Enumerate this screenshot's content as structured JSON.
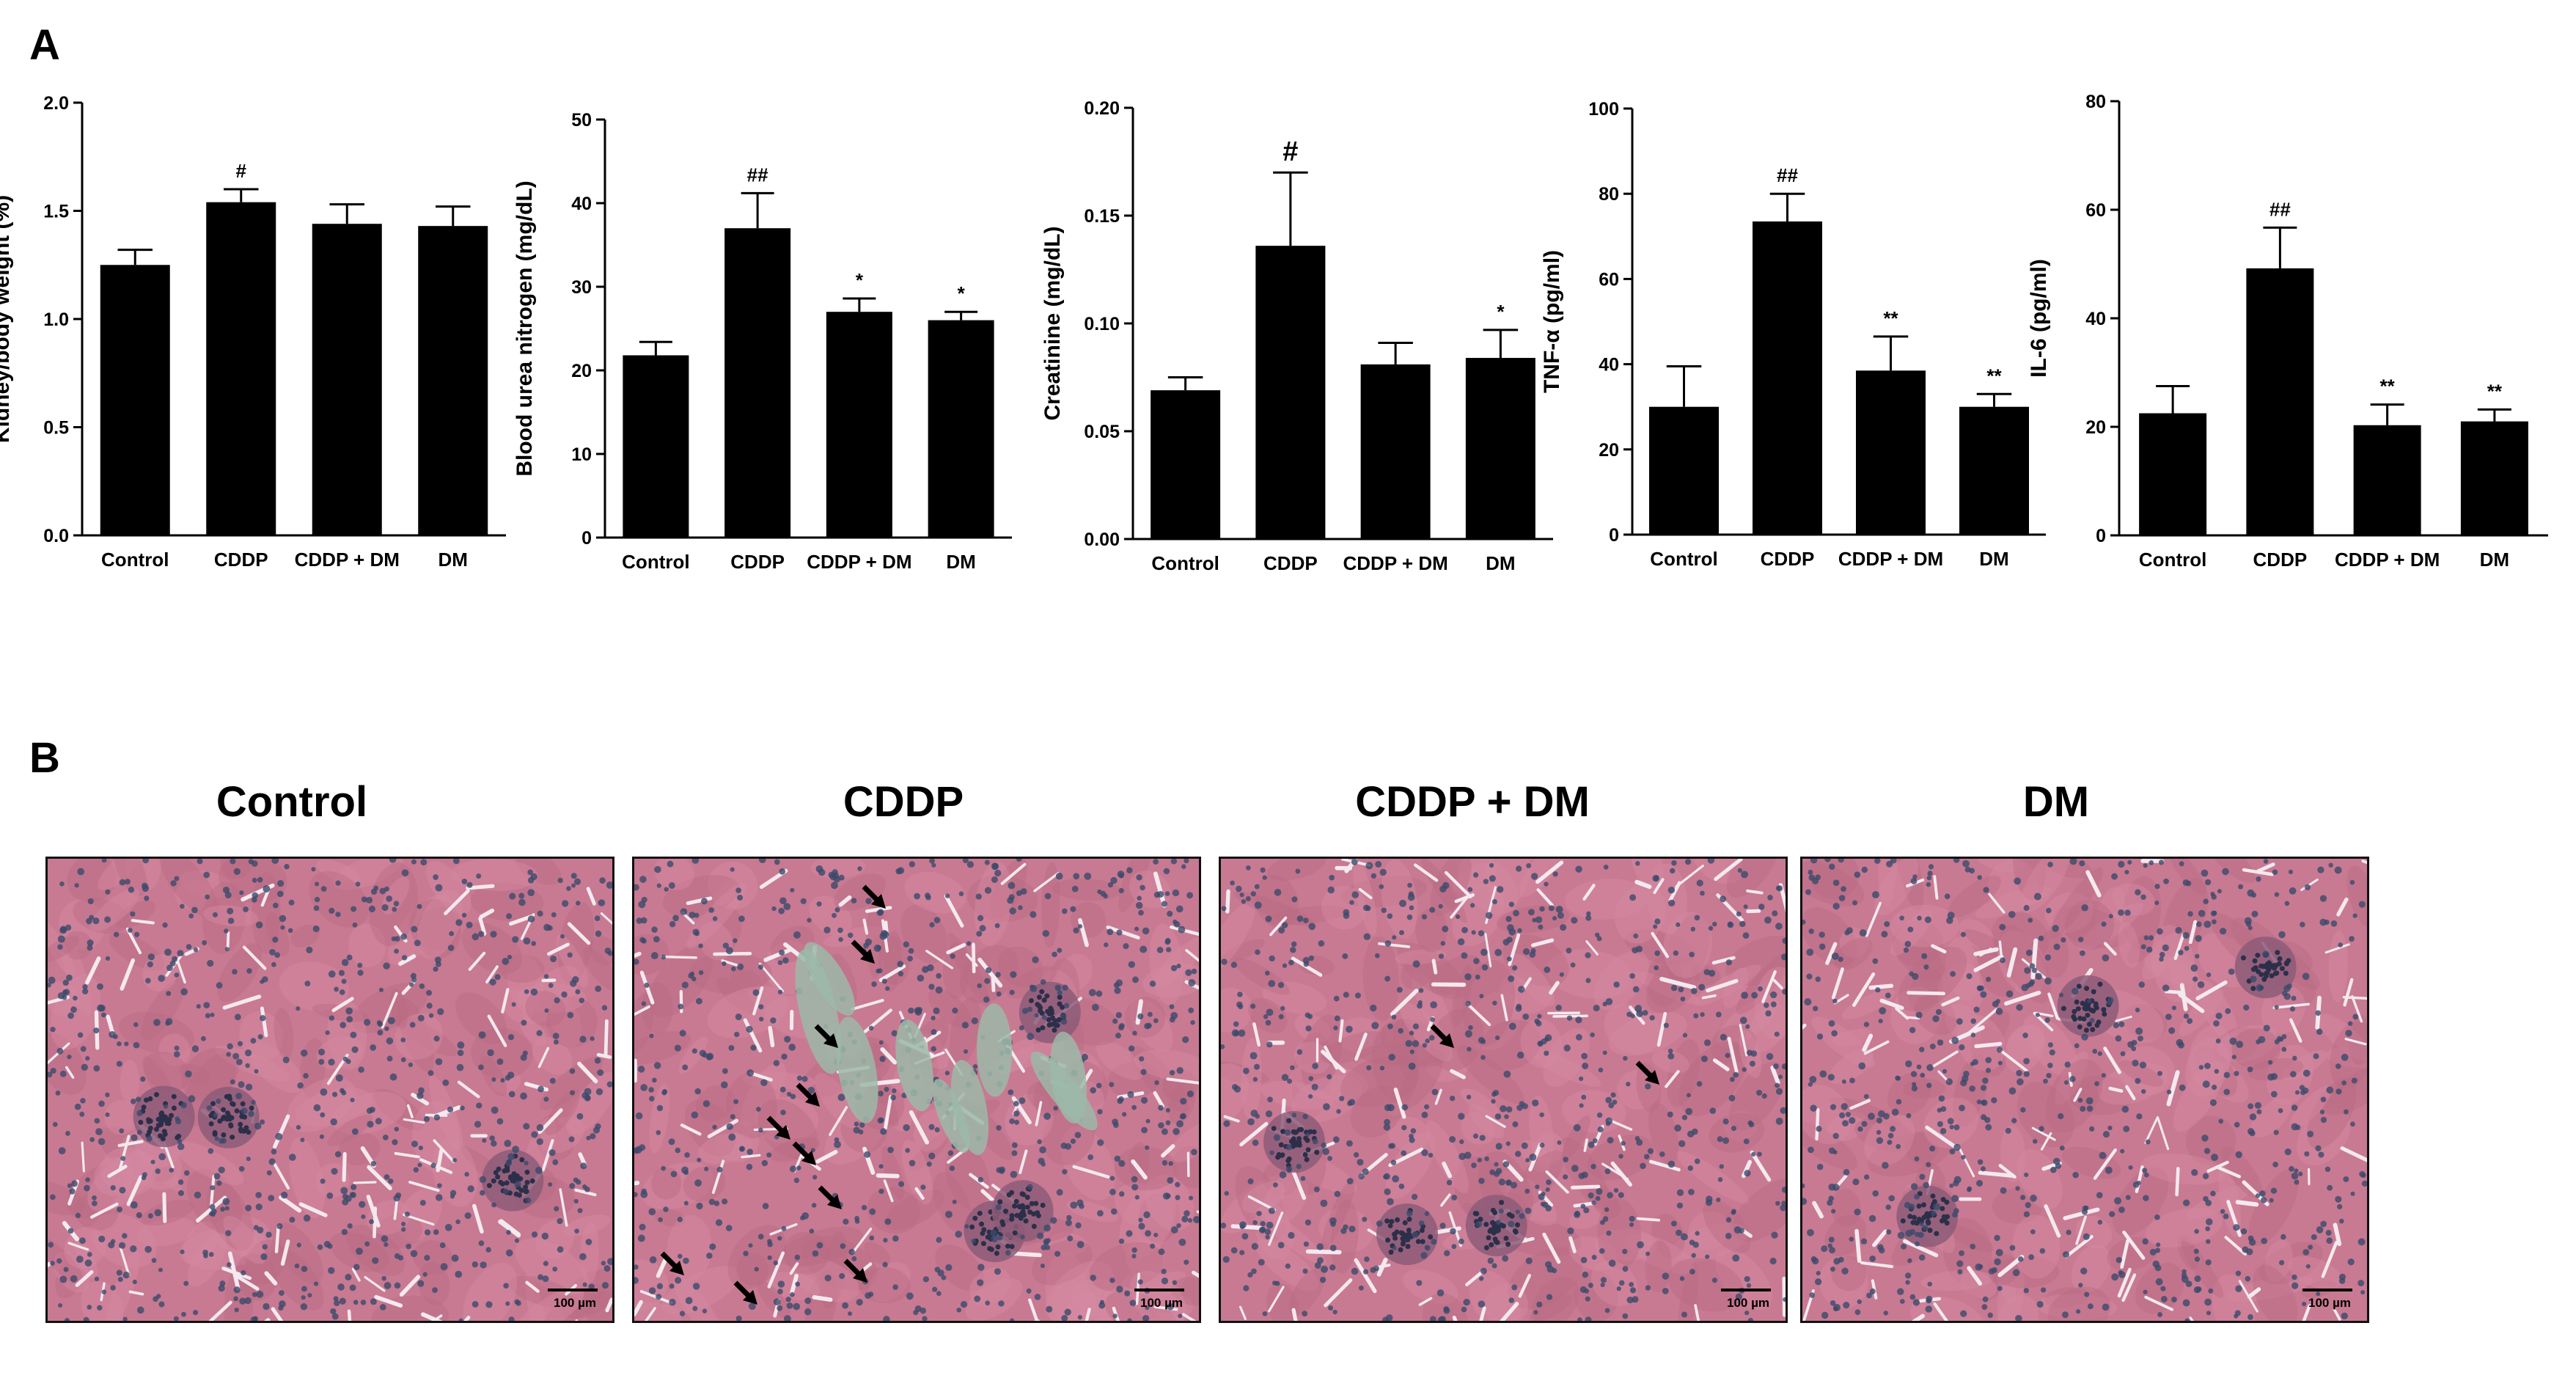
{
  "panels": {
    "a_label": "A",
    "b_label": "B"
  },
  "chart_data": [
    {
      "type": "bar",
      "categories": [
        "Control",
        "CDDP",
        "CDDP + DM",
        "DM"
      ],
      "values": [
        1.25,
        1.54,
        1.44,
        1.43
      ],
      "errors": [
        0.07,
        0.06,
        0.09,
        0.09
      ],
      "annotations": [
        "",
        "#",
        "",
        ""
      ],
      "ylabel": "Kidney/body weight (%)",
      "ylim": [
        0,
        2.0
      ],
      "yticks": [
        "0.0",
        "0.5",
        "1.0",
        "1.5",
        "2.0"
      ],
      "ytick_values": [
        0,
        0.5,
        1.0,
        1.5,
        2.0
      ]
    },
    {
      "type": "bar",
      "categories": [
        "Control",
        "CDDP",
        "CDDP + DM",
        "DM"
      ],
      "values": [
        21.8,
        37.0,
        27.0,
        26.0
      ],
      "errors": [
        1.6,
        4.2,
        1.6,
        1.0
      ],
      "annotations": [
        "",
        "##",
        "*",
        "*"
      ],
      "ylabel": "Blood urea nitrogen (mg/dL)",
      "ylim": [
        0,
        50
      ],
      "yticks": [
        "0",
        "10",
        "20",
        "30",
        "40",
        "50"
      ],
      "ytick_values": [
        0,
        10,
        20,
        30,
        40,
        50
      ]
    },
    {
      "type": "bar",
      "categories": [
        "Control",
        "CDDP",
        "CDDP + DM",
        "DM"
      ],
      "values": [
        0.069,
        0.136,
        0.081,
        0.084
      ],
      "errors": [
        0.006,
        0.034,
        0.01,
        0.013
      ],
      "annotations": [
        "",
        "#",
        "",
        "*"
      ],
      "ylabel": "Creatinine (mg/dL)",
      "ylim": [
        0,
        0.2
      ],
      "yticks": [
        "0.00",
        "0.05",
        "0.10",
        "0.15",
        "0.20"
      ],
      "ytick_values": [
        0,
        0.05,
        0.1,
        0.15,
        0.2
      ]
    },
    {
      "type": "bar",
      "categories": [
        "Control",
        "CDDP",
        "CDDP + DM",
        "DM"
      ],
      "values": [
        30,
        73.5,
        38.5,
        30
      ],
      "errors": [
        9.5,
        6.5,
        8,
        3
      ],
      "annotations": [
        "",
        "##",
        "**",
        "**"
      ],
      "ylabel": "TNF-α (pg/ml)",
      "ylim": [
        0,
        100
      ],
      "yticks": [
        "0",
        "20",
        "40",
        "60",
        "80",
        "100"
      ],
      "ytick_values": [
        0,
        20,
        40,
        60,
        80,
        100
      ]
    },
    {
      "type": "bar",
      "categories": [
        "Control",
        "CDDP",
        "CDDP + DM",
        "DM"
      ],
      "values": [
        22.5,
        49.2,
        20.3,
        21.0
      ],
      "errors": [
        5,
        7.5,
        3.8,
        2.2
      ],
      "annotations": [
        "",
        "##",
        "**",
        "**"
      ],
      "ylabel": "IL-6 (pg/ml)",
      "ylim": [
        0,
        80
      ],
      "yticks": [
        "0",
        "20",
        "40",
        "60",
        "80"
      ],
      "ytick_values": [
        0,
        20,
        40,
        60,
        80
      ]
    }
  ],
  "micrographs": [
    {
      "title": "Control",
      "scale": "100 µm",
      "arrows": 0
    },
    {
      "title": "CDDP",
      "scale": "100 µm",
      "arrows": 10
    },
    {
      "title": "CDDP + DM",
      "scale": "100 µm",
      "arrows": 2
    },
    {
      "title": "DM",
      "scale": "100 µm",
      "arrows": 0
    }
  ],
  "colors": {
    "bar": "#000000",
    "stain_bg": "#c87a92",
    "nuclei": "#3b4a6b",
    "lumen": "#f3e9ee",
    "injury": "#9cb8a8"
  }
}
